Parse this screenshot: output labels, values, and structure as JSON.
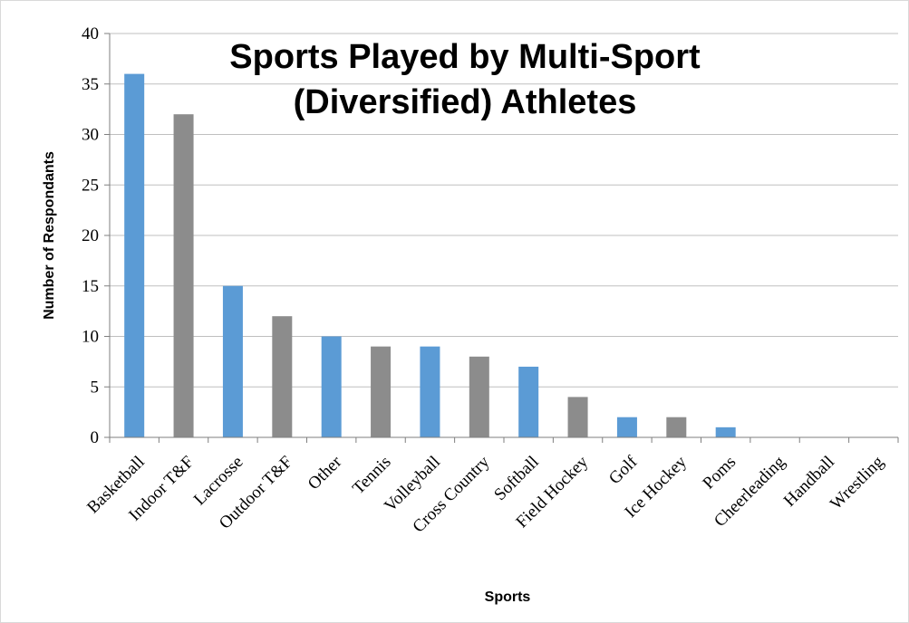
{
  "chart_data": {
    "type": "bar",
    "title_lines": [
      "Sports Played by Multi-Sport",
      "(Diversified) Athletes"
    ],
    "xlabel": "Sports",
    "ylabel": "Number of Respondants",
    "ylim": [
      0,
      40
    ],
    "yticks": [
      0,
      5,
      10,
      15,
      20,
      25,
      30,
      35,
      40
    ],
    "grid": true,
    "legend": "none",
    "categories": [
      "Basketball",
      "Indoor T&F",
      "Lacrosse",
      "Outdoor T&F",
      "Other",
      "Tennis",
      "Volleyball",
      "Cross Country",
      "Softball",
      "Field Hockey",
      "Golf",
      "Ice Hockey",
      "Poms",
      "Cheerleading",
      "Handball",
      "Wrestling"
    ],
    "values": [
      36,
      32,
      15,
      12,
      10,
      9,
      9,
      8,
      7,
      4,
      2,
      2,
      1,
      0,
      0,
      0
    ],
    "colors": {
      "odd": "#5b9bd5",
      "even": "#8c8c8c",
      "grid": "#bfbfbf",
      "axis": "#7f7f7f"
    }
  }
}
